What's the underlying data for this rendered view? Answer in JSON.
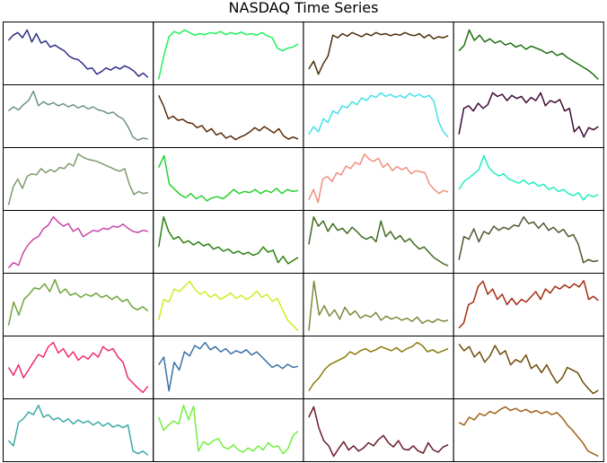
{
  "chart_data": {
    "type": "line",
    "title": "NASDAQ Time Series",
    "layout": {
      "rows": 7,
      "cols": 4
    },
    "axes_visible": false,
    "panels": [
      {
        "color": "#2e2d86",
        "values": [
          0.75,
          0.85,
          0.9,
          0.8,
          0.95,
          0.72,
          0.88,
          0.7,
          0.74,
          0.62,
          0.66,
          0.6,
          0.55,
          0.45,
          0.4,
          0.38,
          0.3,
          0.2,
          0.22,
          0.1,
          0.15,
          0.22,
          0.18,
          0.24,
          0.2,
          0.26,
          0.22,
          0.16,
          0.06,
          0.12,
          0.04
        ]
      },
      {
        "color": "#21f05c",
        "values": [
          0.0,
          0.45,
          0.82,
          0.92,
          0.88,
          0.95,
          0.9,
          0.85,
          0.88,
          0.86,
          0.9,
          0.88,
          0.92,
          0.86,
          0.9,
          0.87,
          0.91,
          0.86,
          0.88,
          0.85,
          0.9,
          0.84,
          0.8,
          0.6,
          0.55,
          0.6,
          0.62,
          0.68
        ]
      },
      {
        "color": "#4b2e0a",
        "values": [
          0.2,
          0.35,
          0.1,
          0.3,
          0.45,
          0.85,
          0.8,
          0.88,
          0.83,
          0.9,
          0.86,
          0.82,
          0.88,
          0.84,
          0.9,
          0.86,
          0.88,
          0.84,
          0.87,
          0.85,
          0.9,
          0.86,
          0.84,
          0.88,
          0.8,
          0.86,
          0.78,
          0.82,
          0.8,
          0.84
        ]
      },
      {
        "color": "#1c6f0f",
        "values": [
          0.55,
          0.65,
          0.95,
          0.75,
          0.85,
          0.72,
          0.78,
          0.7,
          0.74,
          0.66,
          0.7,
          0.62,
          0.66,
          0.58,
          0.64,
          0.6,
          0.56,
          0.5,
          0.54,
          0.46,
          0.5,
          0.42,
          0.36,
          0.3,
          0.24,
          0.18,
          0.1,
          0.0
        ]
      },
      {
        "color": "#6e9380",
        "values": [
          0.6,
          0.68,
          0.62,
          0.72,
          0.8,
          0.98,
          0.7,
          0.78,
          0.72,
          0.76,
          0.7,
          0.74,
          0.68,
          0.72,
          0.66,
          0.7,
          0.64,
          0.68,
          0.62,
          0.6,
          0.55,
          0.58,
          0.5,
          0.45,
          0.3,
          0.1,
          0.04,
          0.08,
          0.06
        ]
      },
      {
        "color": "#5a2a08",
        "values": [
          0.9,
          0.7,
          0.45,
          0.5,
          0.42,
          0.44,
          0.38,
          0.36,
          0.28,
          0.32,
          0.2,
          0.26,
          0.14,
          0.18,
          0.08,
          0.12,
          0.05,
          0.1,
          0.14,
          0.2,
          0.28,
          0.22,
          0.3,
          0.24,
          0.18,
          0.26,
          0.12,
          0.06,
          0.1,
          0.06
        ]
      },
      {
        "color": "#44e0e8",
        "values": [
          0.15,
          0.3,
          0.2,
          0.45,
          0.38,
          0.6,
          0.55,
          0.7,
          0.66,
          0.78,
          0.72,
          0.85,
          0.8,
          0.9,
          0.86,
          0.95,
          0.88,
          0.92,
          0.86,
          0.9,
          0.85,
          0.94,
          0.88,
          0.92,
          0.86,
          0.9,
          0.8,
          0.4,
          0.2,
          0.1
        ]
      },
      {
        "color": "#3d0a35",
        "values": [
          0.15,
          0.65,
          0.7,
          0.6,
          0.75,
          0.65,
          0.72,
          0.95,
          0.88,
          0.92,
          0.8,
          0.9,
          0.84,
          0.88,
          0.76,
          0.86,
          0.8,
          0.95,
          0.7,
          0.8,
          0.76,
          0.82,
          0.6,
          0.65,
          0.2,
          0.3,
          0.1,
          0.28,
          0.24,
          0.3
        ]
      },
      {
        "color": "#7b9b6c",
        "values": [
          0.0,
          0.35,
          0.5,
          0.32,
          0.55,
          0.6,
          0.58,
          0.7,
          0.62,
          0.68,
          0.64,
          0.72,
          0.7,
          0.8,
          0.75,
          0.98,
          0.92,
          0.88,
          0.86,
          0.84,
          0.8,
          0.76,
          0.72,
          0.68,
          0.65,
          0.7,
          0.4,
          0.2,
          0.26,
          0.22,
          0.24
        ]
      },
      {
        "color": "#26d12f",
        "values": [
          0.72,
          0.95,
          0.4,
          0.3,
          0.2,
          0.14,
          0.22,
          0.12,
          0.18,
          0.08,
          0.14,
          0.16,
          0.12,
          0.2,
          0.3,
          0.22,
          0.26,
          0.24,
          0.3,
          0.22,
          0.28,
          0.24,
          0.32,
          0.22,
          0.3,
          0.26,
          0.28
        ]
      },
      {
        "color": "#f0907e",
        "values": [
          0.1,
          0.3,
          0.05,
          0.5,
          0.55,
          0.45,
          0.62,
          0.58,
          0.75,
          0.7,
          0.82,
          0.78,
          0.98,
          0.88,
          0.84,
          0.9,
          0.72,
          0.8,
          0.66,
          0.74,
          0.68,
          0.72,
          0.6,
          0.66,
          0.64,
          0.62,
          0.4,
          0.3,
          0.22,
          0.28,
          0.25
        ]
      },
      {
        "color": "#20f0c0",
        "values": [
          0.3,
          0.45,
          0.52,
          0.6,
          0.68,
          0.95,
          0.72,
          0.62,
          0.56,
          0.6,
          0.5,
          0.46,
          0.42,
          0.48,
          0.4,
          0.44,
          0.36,
          0.4,
          0.3,
          0.34,
          0.26,
          0.3,
          0.22,
          0.18,
          0.24,
          0.1,
          0.2,
          0.16,
          0.2
        ]
      },
      {
        "color": "#c846a8",
        "values": [
          0.0,
          0.1,
          0.05,
          0.3,
          0.45,
          0.55,
          0.6,
          0.75,
          0.82,
          0.98,
          0.88,
          0.8,
          0.85,
          0.7,
          0.76,
          0.6,
          0.66,
          0.72,
          0.7,
          0.76,
          0.74,
          0.8,
          0.78,
          0.84,
          0.76,
          0.7,
          0.68,
          0.72,
          0.7
        ]
      },
      {
        "color": "#2a800f",
        "values": [
          0.4,
          0.98,
          0.7,
          0.55,
          0.6,
          0.48,
          0.52,
          0.44,
          0.5,
          0.42,
          0.46,
          0.36,
          0.4,
          0.32,
          0.36,
          0.28,
          0.32,
          0.26,
          0.3,
          0.24,
          0.28,
          0.4,
          0.3,
          0.34,
          0.1,
          0.22,
          0.08,
          0.14,
          0.2
        ]
      },
      {
        "color": "#3f6b1f",
        "values": [
          0.45,
          0.98,
          0.8,
          0.9,
          0.7,
          0.85,
          0.72,
          0.76,
          0.66,
          0.78,
          0.7,
          0.6,
          0.55,
          0.6,
          0.5,
          0.9,
          0.6,
          0.7,
          0.55,
          0.62,
          0.5,
          0.56,
          0.45,
          0.36,
          0.4,
          0.3,
          0.2,
          0.14,
          0.08,
          0.04
        ]
      },
      {
        "color": "#4e5930",
        "values": [
          0.15,
          0.6,
          0.55,
          0.75,
          0.5,
          0.7,
          0.65,
          0.8,
          0.72,
          0.78,
          0.74,
          0.82,
          0.8,
          0.98,
          0.85,
          0.88,
          0.76,
          0.86,
          0.72,
          0.78,
          0.68,
          0.74,
          0.6,
          0.64,
          0.45,
          0.1,
          0.16,
          0.12,
          0.14
        ]
      },
      {
        "color": "#6ea53a",
        "values": [
          0.1,
          0.55,
          0.3,
          0.6,
          0.7,
          0.82,
          0.8,
          0.9,
          0.75,
          0.98,
          0.72,
          0.8,
          0.68,
          0.72,
          0.64,
          0.7,
          0.66,
          0.72,
          0.64,
          0.68,
          0.6,
          0.66,
          0.56,
          0.6,
          0.45,
          0.4,
          0.46,
          0.38
        ]
      },
      {
        "color": "#c8f020",
        "values": [
          0.2,
          0.6,
          0.55,
          0.8,
          0.75,
          0.85,
          0.95,
          0.8,
          0.7,
          0.75,
          0.64,
          0.7,
          0.6,
          0.66,
          0.72,
          0.62,
          0.68,
          0.6,
          0.66,
          0.76,
          0.64,
          0.7,
          0.56,
          0.62,
          0.4,
          0.2,
          0.1,
          0.0
        ]
      },
      {
        "color": "#7a8a3a",
        "values": [
          0.0,
          0.95,
          0.3,
          0.48,
          0.28,
          0.4,
          0.22,
          0.45,
          0.3,
          0.38,
          0.24,
          0.3,
          0.26,
          0.35,
          0.2,
          0.28,
          0.22,
          0.26,
          0.2,
          0.24,
          0.18,
          0.26,
          0.14,
          0.2,
          0.16,
          0.22,
          0.18,
          0.2
        ]
      },
      {
        "color": "#a62a12",
        "values": [
          0.05,
          0.15,
          0.5,
          0.55,
          0.85,
          0.95,
          0.7,
          0.8,
          0.6,
          0.7,
          0.5,
          0.62,
          0.5,
          0.6,
          0.55,
          0.65,
          0.75,
          0.6,
          0.8,
          0.72,
          0.85,
          0.8,
          0.88,
          0.82,
          0.9,
          0.84,
          0.96,
          0.6,
          0.66,
          0.58
        ]
      },
      {
        "color": "#f02a6a",
        "values": [
          0.5,
          0.35,
          0.55,
          0.3,
          0.45,
          0.6,
          0.75,
          0.7,
          0.9,
          0.98,
          0.78,
          0.86,
          0.7,
          0.8,
          0.64,
          0.72,
          0.66,
          0.78,
          0.7,
          0.9,
          0.82,
          0.86,
          0.7,
          0.6,
          0.3,
          0.2,
          0.1,
          0.02,
          0.14
        ]
      },
      {
        "color": "#3a70a6",
        "values": [
          0.55,
          0.7,
          0.05,
          0.6,
          0.45,
          0.8,
          0.72,
          0.92,
          0.86,
          0.98,
          0.84,
          0.9,
          0.8,
          0.86,
          0.76,
          0.82,
          0.78,
          0.84,
          0.74,
          0.8,
          0.7,
          0.6,
          0.5,
          0.55,
          0.48,
          0.56,
          0.5,
          0.52
        ]
      },
      {
        "color": "#8a7a0a",
        "values": [
          0.05,
          0.2,
          0.3,
          0.45,
          0.55,
          0.6,
          0.65,
          0.7,
          0.8,
          0.75,
          0.82,
          0.86,
          0.8,
          0.84,
          0.9,
          0.86,
          0.82,
          0.88,
          0.8,
          0.86,
          0.9,
          0.98,
          0.92,
          0.8,
          0.84,
          0.78,
          0.82,
          0.86
        ]
      },
      {
        "color": "#6e4a08",
        "values": [
          0.95,
          0.82,
          0.9,
          0.7,
          0.8,
          0.6,
          0.72,
          0.92,
          0.75,
          0.82,
          0.55,
          0.65,
          0.6,
          0.74,
          0.48,
          0.55,
          0.4,
          0.55,
          0.36,
          0.2,
          0.3,
          0.5,
          0.45,
          0.4,
          0.22,
          0.1,
          0.0,
          0.06
        ]
      },
      {
        "color": "#3aaaa8",
        "values": [
          0.3,
          0.2,
          0.65,
          0.72,
          0.85,
          0.8,
          0.98,
          0.75,
          0.8,
          0.7,
          0.74,
          0.66,
          0.72,
          0.62,
          0.7,
          0.64,
          0.68,
          0.6,
          0.66,
          0.58,
          0.64,
          0.56,
          0.6,
          0.55,
          0.6,
          0.1,
          0.05,
          0.1,
          0.02
        ]
      },
      {
        "color": "#70f040",
        "values": [
          0.75,
          0.5,
          0.6,
          0.68,
          0.62,
          0.98,
          0.7,
          0.96,
          0.1,
          0.28,
          0.22,
          0.3,
          0.34,
          0.18,
          0.14,
          0.22,
          0.12,
          0.08,
          0.16,
          0.1,
          0.2,
          0.12,
          0.26,
          0.18,
          0.2,
          0.05,
          0.15,
          0.4,
          0.48
        ]
      },
      {
        "color": "#6a1a28",
        "values": [
          0.75,
          0.95,
          0.55,
          0.3,
          0.2,
          0.0,
          0.15,
          0.28,
          0.12,
          0.2,
          0.1,
          0.16,
          0.26,
          0.2,
          0.32,
          0.4,
          0.26,
          0.18,
          0.3,
          0.14,
          0.12,
          0.2,
          0.1,
          0.06,
          0.26,
          0.12,
          0.08,
          0.18,
          0.22
        ]
      },
      {
        "color": "#a0601a",
        "values": [
          0.65,
          0.6,
          0.75,
          0.7,
          0.82,
          0.78,
          0.86,
          0.82,
          0.9,
          0.95,
          0.88,
          0.92,
          0.86,
          0.9,
          0.84,
          0.88,
          0.82,
          0.86,
          0.8,
          0.84,
          0.74,
          0.6,
          0.5,
          0.38,
          0.26,
          0.1,
          0.05,
          0.0
        ]
      }
    ]
  }
}
